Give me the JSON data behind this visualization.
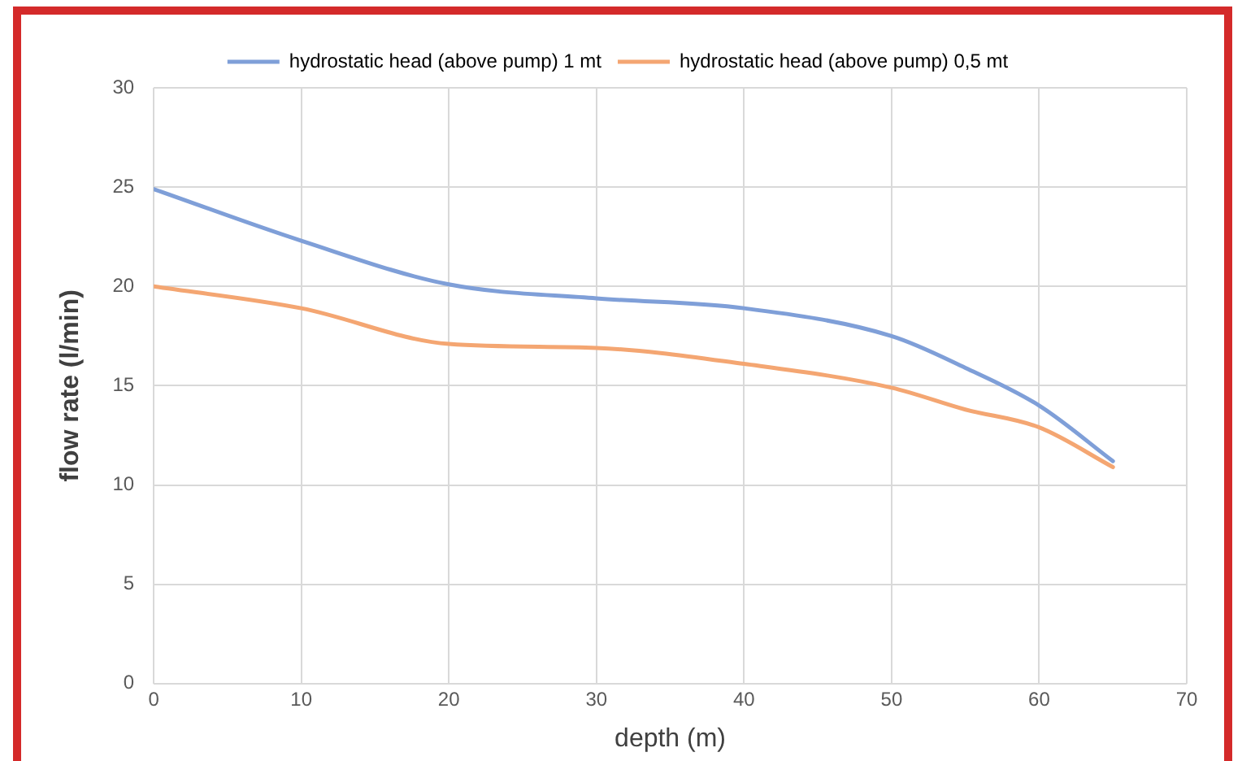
{
  "chart_data": {
    "type": "line",
    "xlabel": "depth (m)",
    "ylabel": "flow rate (l/min)",
    "x": [
      0,
      10,
      20,
      30,
      40,
      50,
      55,
      60,
      65
    ],
    "series": [
      {
        "name": "hydrostatic head (above pump) 1 mt",
        "color": "#7f9fd8",
        "values": [
          24.9,
          22.3,
          20.1,
          19.4,
          18.9,
          17.5,
          15.9,
          14.0,
          11.2
        ]
      },
      {
        "name": "hydrostatic head (above pump) 0,5 mt",
        "color": "#f4a672",
        "values": [
          20,
          18.9,
          17.1,
          16.9,
          16.1,
          14.9,
          13.8,
          12.9,
          10.9
        ]
      }
    ],
    "xlim": [
      0,
      70
    ],
    "xticks": [
      0,
      10,
      20,
      30,
      40,
      50,
      60,
      70
    ],
    "ylim": [
      0,
      30
    ],
    "yticks": [
      0,
      5,
      10,
      15,
      20,
      25,
      30
    ],
    "grid": true,
    "legend": "top",
    "marker": "none",
    "line_style": "solid"
  }
}
